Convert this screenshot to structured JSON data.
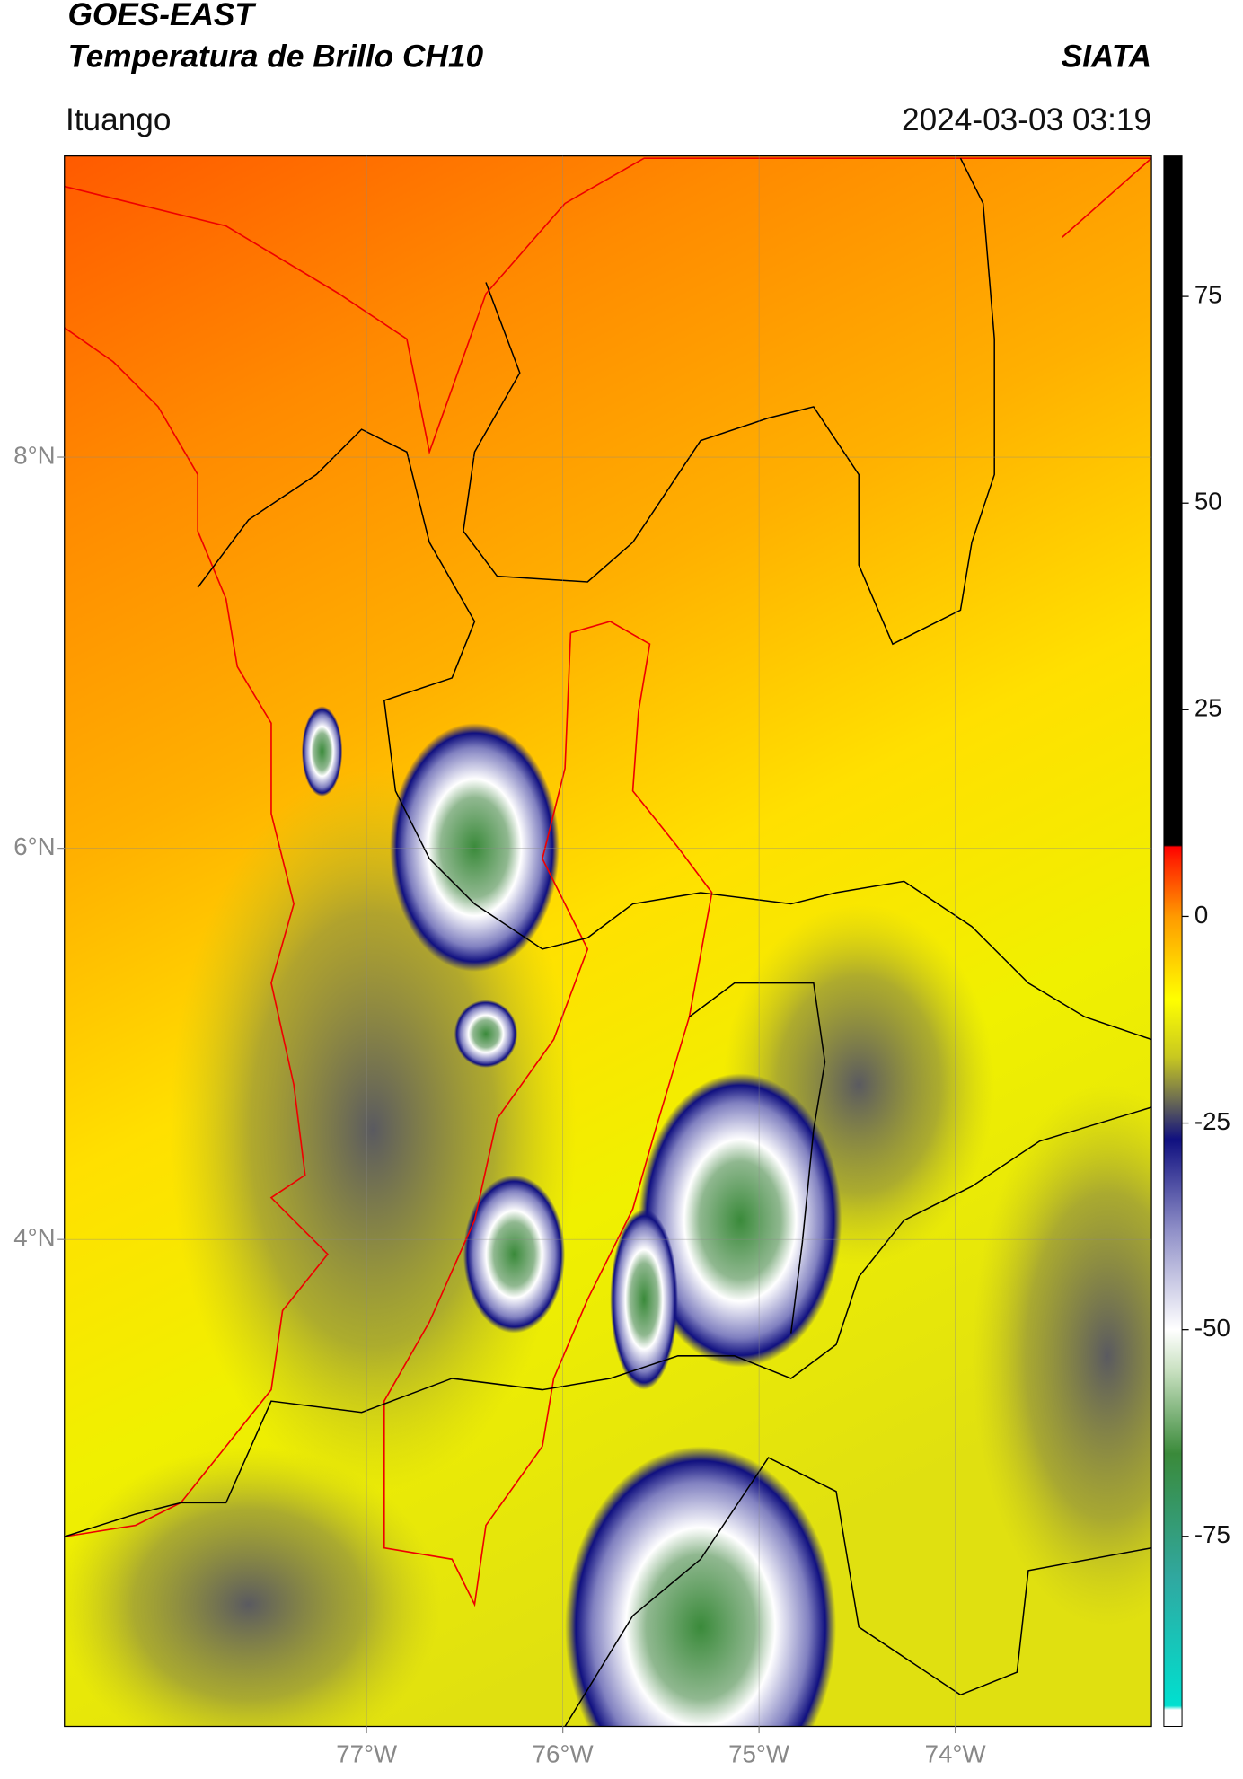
{
  "header": {
    "title": "GOES-EAST",
    "subtitle": "Temperatura de Brillo CH10",
    "brand": "SIATA",
    "location": "Ituango",
    "datetime": "2024-03-03 03:19"
  },
  "map": {
    "xlim": [
      -78.54,
      -73.0
    ],
    "ylim": [
      1.51,
      9.54
    ],
    "xticks": [
      {
        "value": -77,
        "label": "77°W"
      },
      {
        "value": -76,
        "label": "76°W"
      },
      {
        "value": -75,
        "label": "75°W"
      },
      {
        "value": -74,
        "label": "74°W"
      }
    ],
    "yticks": [
      {
        "value": 4,
        "label": "4°N"
      },
      {
        "value": 6,
        "label": "6°N"
      },
      {
        "value": 8,
        "label": "8°N"
      }
    ],
    "grid": true
  },
  "colorbar": {
    "range": [
      -98,
      92
    ],
    "ticks": [
      75,
      50,
      25,
      0,
      -25,
      -50,
      -75
    ],
    "stops": [
      {
        "value": -98,
        "color": "#ffffff"
      },
      {
        "value": -96,
        "color": "#ffffff"
      },
      {
        "value": -95.5,
        "color": "#00e0d0"
      },
      {
        "value": -80,
        "color": "#30a8a0"
      },
      {
        "value": -65,
        "color": "#3a8a3a"
      },
      {
        "value": -55,
        "color": "#c8e0c0"
      },
      {
        "value": -50,
        "color": "#ffffff"
      },
      {
        "value": -38,
        "color": "#9090c8"
      },
      {
        "value": -27,
        "color": "#101080"
      },
      {
        "value": -22,
        "color": "#707050"
      },
      {
        "value": -17,
        "color": "#c8c820"
      },
      {
        "value": -10,
        "color": "#ffff00"
      },
      {
        "value": 0,
        "color": "#ff9a00"
      },
      {
        "value": 7,
        "color": "#ff2000"
      },
      {
        "value": 8.4,
        "color": "#ff0000"
      },
      {
        "value": 8.6,
        "color": "#000000"
      },
      {
        "value": 92,
        "color": "#000000"
      }
    ]
  }
}
